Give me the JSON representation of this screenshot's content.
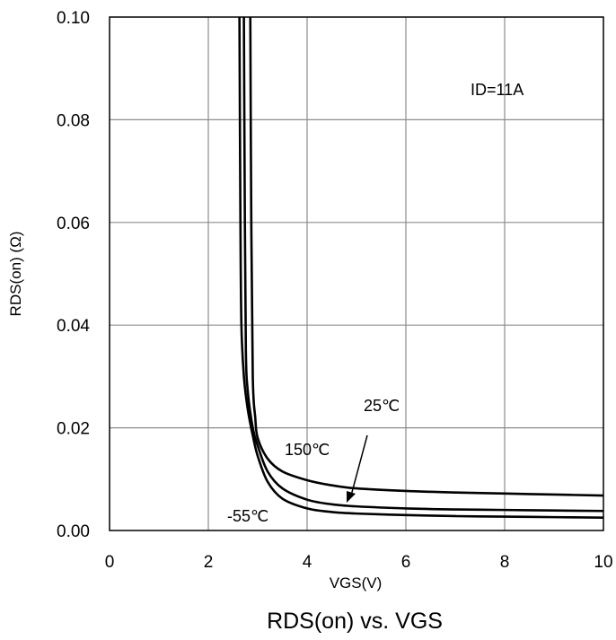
{
  "chart_data": {
    "type": "line",
    "title": "RDS(on) vs. VGS",
    "xlabel": "VGS(V)",
    "ylabel": "RDS(on) (Ω)",
    "xlim": [
      0,
      10
    ],
    "ylim": [
      0,
      0.1
    ],
    "xticks": [
      "0",
      "2",
      "4",
      "6",
      "8",
      "10"
    ],
    "yticks": [
      "0.00",
      "0.02",
      "0.04",
      "0.06",
      "0.08",
      "0.10"
    ],
    "grid": true,
    "annotations": [
      "ID=11A",
      "150℃",
      "25℃",
      "-55℃"
    ],
    "series": [
      {
        "name": "150℃",
        "x": [
          2.85,
          2.87,
          2.9,
          2.95,
          3.0,
          3.2,
          3.5,
          4.0,
          4.5,
          5.0,
          6.0,
          7.0,
          8.0,
          9.0,
          10.0
        ],
        "y": [
          0.1,
          0.06,
          0.03,
          0.022,
          0.018,
          0.014,
          0.0115,
          0.0098,
          0.0088,
          0.0082,
          0.0077,
          0.0074,
          0.0072,
          0.007,
          0.0068
        ]
      },
      {
        "name": "25℃",
        "x": [
          2.72,
          2.74,
          2.76,
          2.8,
          2.9,
          3.0,
          3.2,
          3.5,
          4.0,
          4.5,
          5.0,
          6.0,
          7.0,
          8.0,
          9.0,
          10.0
        ],
        "y": [
          0.1,
          0.06,
          0.035,
          0.027,
          0.02,
          0.0165,
          0.0115,
          0.0082,
          0.006,
          0.0051,
          0.0047,
          0.0043,
          0.0041,
          0.004,
          0.0039,
          0.0038
        ]
      },
      {
        "name": "-55℃",
        "x": [
          2.63,
          2.65,
          2.67,
          2.72,
          2.8,
          2.9,
          3.0,
          3.2,
          3.5,
          4.0,
          4.5,
          5.0,
          6.0,
          7.0,
          8.0,
          9.0,
          10.0
        ],
        "y": [
          0.1,
          0.06,
          0.04,
          0.03,
          0.0235,
          0.0185,
          0.0145,
          0.0095,
          0.0062,
          0.0043,
          0.0036,
          0.0033,
          0.003,
          0.0028,
          0.0027,
          0.0026,
          0.0025
        ]
      }
    ]
  }
}
